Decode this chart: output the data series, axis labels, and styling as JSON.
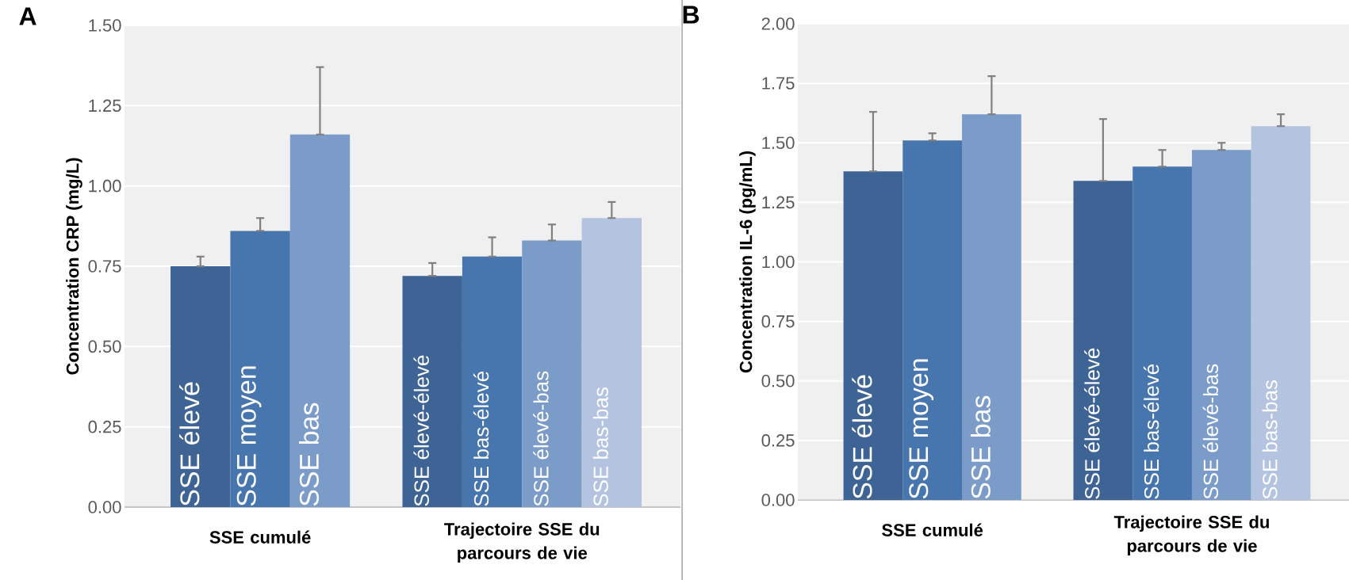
{
  "chart_data": [
    {
      "type": "bar",
      "title": "A",
      "ylabel": "Concentration CRP (mg/L)",
      "categories": [
        "SSE élevé",
        "SSE moyen",
        "SSE bas",
        "SSE élevé-élevé",
        "SSE bas-élevé",
        "SSE élevé-bas",
        "SSE bas-bas"
      ],
      "values": [
        0.75,
        0.86,
        1.16,
        0.72,
        0.78,
        0.83,
        0.9
      ],
      "errors": [
        [
          0.75,
          0.78
        ],
        [
          0.86,
          0.9
        ],
        [
          1.16,
          1.37
        ],
        [
          0.72,
          0.76
        ],
        [
          0.78,
          0.84
        ],
        [
          0.83,
          0.88
        ],
        [
          0.9,
          0.95
        ]
      ],
      "colors": [
        "#3e6496",
        "#4775ae",
        "#7b9bc8",
        "#3e6496",
        "#4775ae",
        "#7b9bc8",
        "#b4c3e0"
      ],
      "ylim": [
        0,
        1.5
      ],
      "yticks": [
        {
          "value": 0,
          "label": "0.00"
        },
        {
          "value": 0.25,
          "label": "0.25"
        },
        {
          "value": 0.5,
          "label": "0.50"
        },
        {
          "value": 0.75,
          "label": "0.75"
        },
        {
          "value": 1,
          "label": "1.00"
        },
        {
          "value": 1.25,
          "label": "1.25"
        },
        {
          "value": 1.5,
          "label": "1.50"
        }
      ],
      "grid": "y",
      "annotations": [
        "SSE cumulé",
        "Trajectoire SSE du parcours de vie"
      ]
    },
    {
      "type": "bar",
      "title": "B",
      "ylabel": "Concentration IL-6 (pg/mL)",
      "categories": [
        "SSE élevé",
        "SSE moyen",
        "SSE bas",
        "SSE élevé-élevé",
        "SSE bas-élevé",
        "SSE élevé-bas",
        "SSE bas-bas"
      ],
      "values": [
        1.38,
        1.51,
        1.62,
        1.34,
        1.4,
        1.47,
        1.57
      ],
      "errors": [
        [
          1.38,
          1.63
        ],
        [
          1.51,
          1.54
        ],
        [
          1.62,
          1.78
        ],
        [
          1.34,
          1.6
        ],
        [
          1.4,
          1.47
        ],
        [
          1.47,
          1.5
        ],
        [
          1.57,
          1.62
        ]
      ],
      "colors": [
        "#3e6496",
        "#4775ae",
        "#7b9bc8",
        "#3e6496",
        "#4775ae",
        "#7b9bc8",
        "#b4c3e0"
      ],
      "ylim": [
        0,
        2
      ],
      "yticks": [
        {
          "value": 0,
          "label": "0.00"
        },
        {
          "value": 0.25,
          "label": "0.25"
        },
        {
          "value": 0.5,
          "label": "0.50"
        },
        {
          "value": 0.75,
          "label": "0.75"
        },
        {
          "value": 1,
          "label": "1.00"
        },
        {
          "value": 1.25,
          "label": "1.25"
        },
        {
          "value": 1.5,
          "label": "1.50"
        },
        {
          "value": 1.75,
          "label": "1.75"
        },
        {
          "value": 2,
          "label": "2.00"
        }
      ],
      "grid": "y",
      "annotations": [
        "SSE cumulé",
        "Trajectoire SSE du parcours de vie"
      ]
    }
  ]
}
